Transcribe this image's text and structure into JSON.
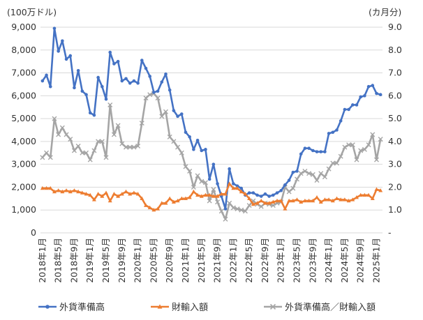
{
  "chart_data": {
    "type": "line",
    "left_unit_label": "(100万ドル)",
    "right_unit_label": "(カ月分)",
    "left_axis": {
      "min": 0,
      "max": 9000,
      "step": 1000,
      "tick_labels": [
        "0",
        "1,000",
        "2,000",
        "3,000",
        "4,000",
        "5,000",
        "6,000",
        "7,000",
        "8,000",
        "9,000"
      ]
    },
    "right_axis": {
      "min": 0,
      "max": 9,
      "step": 1,
      "tick_labels": [
        "-",
        "1.0",
        "2.0",
        "3.0",
        "4.0",
        "5.0",
        "6.0",
        "7.0",
        "8.0",
        "9.0"
      ]
    },
    "x_tick_labels": [
      "2018年1月",
      "2018年5月",
      "2018年9月",
      "2019年1月",
      "2019年5月",
      "2019年9月",
      "2020年1月",
      "2020年5月",
      "2020年9月",
      "2021年1月",
      "2021年5月",
      "2021年9月",
      "2022年1月",
      "2022年5月",
      "2022年9月",
      "2023年1月",
      "2023年5月",
      "2023年9月",
      "2024年1月",
      "2024年5月",
      "2024年9月",
      "2025年1月"
    ],
    "x": [
      "2018-01",
      "2018-02",
      "2018-03",
      "2018-04",
      "2018-05",
      "2018-06",
      "2018-07",
      "2018-08",
      "2018-09",
      "2018-10",
      "2018-11",
      "2018-12",
      "2019-01",
      "2019-02",
      "2019-03",
      "2019-04",
      "2019-05",
      "2019-06",
      "2019-07",
      "2019-08",
      "2019-09",
      "2019-10",
      "2019-11",
      "2019-12",
      "2020-01",
      "2020-02",
      "2020-03",
      "2020-04",
      "2020-05",
      "2020-06",
      "2020-07",
      "2020-08",
      "2020-09",
      "2020-10",
      "2020-11",
      "2020-12",
      "2021-01",
      "2021-02",
      "2021-03",
      "2021-04",
      "2021-05",
      "2021-06",
      "2021-07",
      "2021-08",
      "2021-09",
      "2021-10",
      "2021-11",
      "2021-12",
      "2022-01",
      "2022-02",
      "2022-03",
      "2022-04",
      "2022-05",
      "2022-06",
      "2022-07",
      "2022-08",
      "2022-09",
      "2022-10",
      "2022-11",
      "2022-12",
      "2023-01",
      "2023-02",
      "2023-03",
      "2023-04",
      "2023-05",
      "2023-06",
      "2023-07",
      "2023-08",
      "2023-09",
      "2023-10",
      "2023-11",
      "2023-12",
      "2024-01",
      "2024-02",
      "2024-03",
      "2024-04",
      "2024-05",
      "2024-06",
      "2024-07",
      "2024-08",
      "2024-09",
      "2024-10",
      "2024-11",
      "2024-12",
      "2025-01",
      "2025-02"
    ],
    "series": [
      {
        "name": "外貨準備高",
        "axis": "left",
        "color": "#4472c4",
        "marker": "circle",
        "values": [
          6650,
          6900,
          6400,
          8950,
          7950,
          8400,
          7600,
          7750,
          6350,
          7100,
          6200,
          6050,
          5250,
          5150,
          6800,
          6400,
          5850,
          7900,
          7400,
          7500,
          6650,
          6750,
          6550,
          6650,
          6550,
          7550,
          7200,
          6850,
          6150,
          6200,
          6600,
          6950,
          6250,
          5350,
          5100,
          5200,
          4400,
          4200,
          3650,
          4050,
          3600,
          3650,
          2350,
          3000,
          2150,
          1600,
          1050,
          2800,
          2150,
          2050,
          1950,
          1650,
          1750,
          1750,
          1650,
          1600,
          1700,
          1600,
          1650,
          1750,
          1850,
          2100,
          2300,
          2650,
          2700,
          3450,
          3700,
          3700,
          3600,
          3550,
          3550,
          3550,
          4350,
          4400,
          4500,
          4900,
          5400,
          5400,
          5600,
          5600,
          5950,
          6000,
          6400,
          6450,
          6100,
          6050
        ]
      },
      {
        "name": "財輸入額",
        "axis": "left",
        "color": "#ed7d31",
        "marker": "triangle",
        "values": [
          1950,
          1950,
          1950,
          1800,
          1850,
          1800,
          1850,
          1800,
          1850,
          1800,
          1750,
          1700,
          1650,
          1450,
          1700,
          1600,
          1750,
          1400,
          1700,
          1600,
          1700,
          1800,
          1700,
          1750,
          1700,
          1500,
          1200,
          1100,
          1000,
          1050,
          1300,
          1300,
          1500,
          1350,
          1400,
          1500,
          1500,
          1550,
          1800,
          1650,
          1600,
          1650,
          1650,
          1600,
          1600,
          1700,
          1700,
          2150,
          1950,
          1950,
          1800,
          1700,
          1500,
          1250,
          1300,
          1400,
          1300,
          1300,
          1350,
          1400,
          1400,
          1050,
          1400,
          1400,
          1450,
          1350,
          1400,
          1400,
          1400,
          1550,
          1350,
          1450,
          1450,
          1400,
          1500,
          1450,
          1450,
          1400,
          1450,
          1550,
          1650,
          1650,
          1650,
          1500,
          1900,
          1850
        ]
      },
      {
        "name": "外貨準備高／財輸入額",
        "axis": "right",
        "color": "#a5a5a5",
        "marker": "x",
        "values": [
          3.3,
          3.5,
          3.3,
          5.0,
          4.3,
          4.6,
          4.3,
          4.1,
          3.6,
          3.8,
          3.5,
          3.5,
          3.2,
          3.6,
          4.0,
          4.0,
          3.3,
          5.6,
          4.3,
          4.7,
          3.9,
          3.75,
          3.75,
          3.75,
          3.8,
          4.8,
          5.9,
          6.05,
          6.1,
          5.9,
          5.1,
          5.3,
          4.2,
          4.0,
          3.75,
          3.5,
          2.9,
          2.7,
          2.0,
          2.5,
          2.25,
          2.2,
          1.4,
          1.9,
          1.35,
          0.95,
          0.6,
          1.3,
          1.1,
          1.05,
          1.0,
          0.95,
          1.2,
          1.4,
          1.25,
          1.15,
          1.3,
          1.25,
          1.2,
          1.3,
          1.35,
          2.0,
          1.8,
          1.95,
          2.35,
          2.6,
          2.7,
          2.6,
          2.55,
          2.3,
          2.6,
          2.45,
          2.8,
          3.05,
          3.05,
          3.35,
          3.75,
          3.85,
          3.85,
          3.2,
          3.6,
          3.65,
          3.85,
          4.3,
          3.2,
          4.1
        ]
      }
    ],
    "grid": "horizontal",
    "legend_position": "bottom"
  }
}
